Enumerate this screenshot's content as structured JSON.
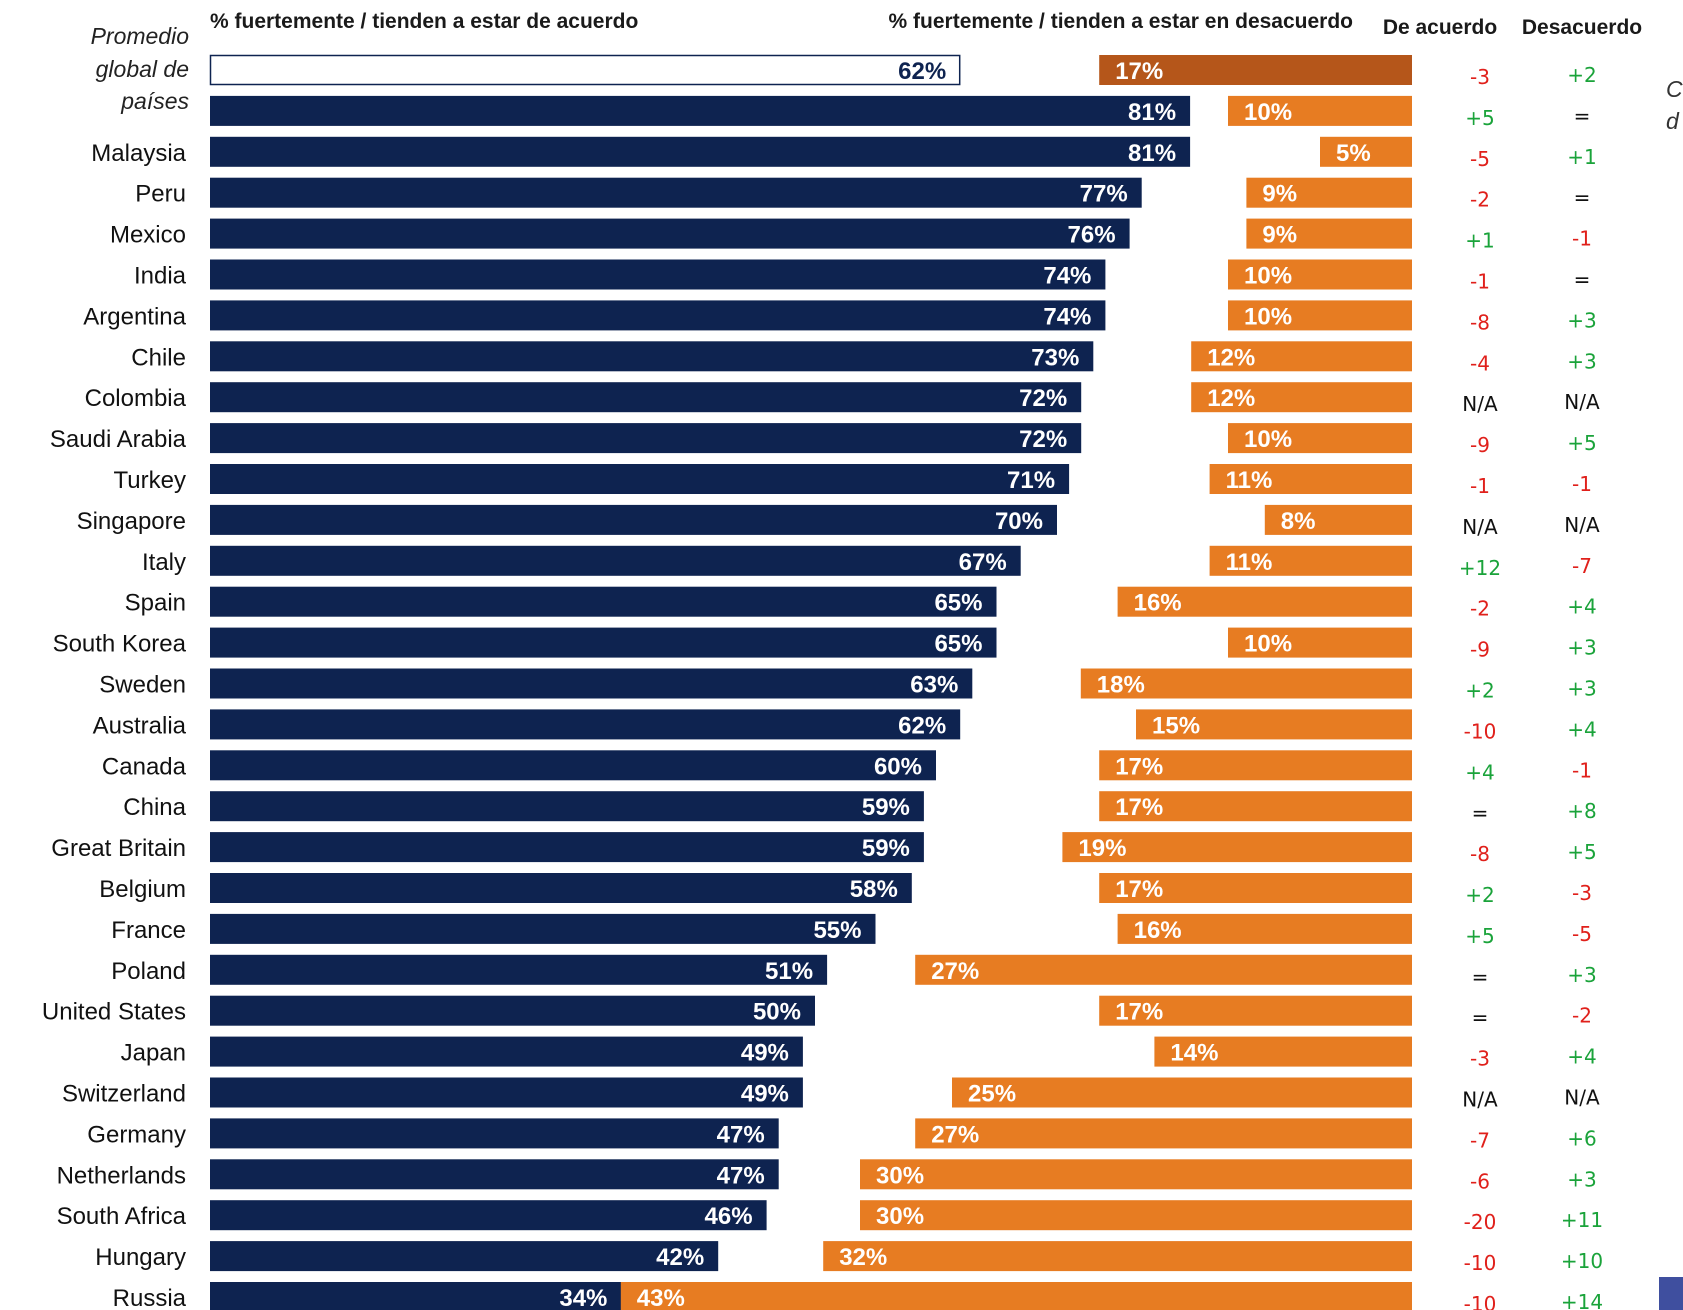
{
  "chart_data": {
    "type": "bar",
    "headers": {
      "agree": "% fuertemente / tienden a estar de acuerdo",
      "disagree": "% fuertemente / tienden a estar en desacuerdo",
      "change_agree": "De acuerdo",
      "change_disagree": "Desacuerdo"
    },
    "average_label": [
      "Promedio",
      "global de",
      "países"
    ],
    "side_note": [
      "C",
      "d"
    ],
    "colors": {
      "agree": "#0e2350",
      "disagree": "#e77c22",
      "average_disagree": "#b5561a",
      "positive_change": "#1aa33a",
      "negative_change": "#e0201b",
      "neutral_change": "#111111",
      "corner_marker": "#3f4f9f"
    },
    "rows": [
      {
        "label": "",
        "agree": 62,
        "disagree": 17,
        "chg_agree": "-3",
        "chg_disagree": "+2",
        "average": true
      },
      {
        "label": "",
        "agree": 81,
        "disagree": 10,
        "chg_agree": "+5",
        "chg_disagree": "="
      },
      {
        "label": "Malaysia",
        "agree": 81,
        "disagree": 5,
        "chg_agree": "-5",
        "chg_disagree": "+1"
      },
      {
        "label": "Peru",
        "agree": 77,
        "disagree": 9,
        "chg_agree": "-2",
        "chg_disagree": "="
      },
      {
        "label": "Mexico",
        "agree": 76,
        "disagree": 9,
        "chg_agree": "+1",
        "chg_disagree": "-1"
      },
      {
        "label": "India",
        "agree": 74,
        "disagree": 10,
        "chg_agree": "-1",
        "chg_disagree": "="
      },
      {
        "label": "Argentina",
        "agree": 74,
        "disagree": 10,
        "chg_agree": "-8",
        "chg_disagree": "+3"
      },
      {
        "label": "Chile",
        "agree": 73,
        "disagree": 12,
        "chg_agree": "-4",
        "chg_disagree": "+3"
      },
      {
        "label": "Colombia",
        "agree": 72,
        "disagree": 12,
        "chg_agree": "N/A",
        "chg_disagree": "N/A"
      },
      {
        "label": "Saudi Arabia",
        "agree": 72,
        "disagree": 10,
        "chg_agree": "-9",
        "chg_disagree": "+5"
      },
      {
        "label": "Turkey",
        "agree": 71,
        "disagree": 11,
        "chg_agree": "-1",
        "chg_disagree": "-1"
      },
      {
        "label": "Singapore",
        "agree": 70,
        "disagree": 8,
        "chg_agree": "N/A",
        "chg_disagree": "N/A"
      },
      {
        "label": "Italy",
        "agree": 67,
        "disagree": 11,
        "chg_agree": "+12",
        "chg_disagree": "-7"
      },
      {
        "label": "Spain",
        "agree": 65,
        "disagree": 16,
        "chg_agree": "-2",
        "chg_disagree": "+4"
      },
      {
        "label": "South Korea",
        "agree": 65,
        "disagree": 10,
        "chg_agree": "-9",
        "chg_disagree": "+3"
      },
      {
        "label": "Sweden",
        "agree": 63,
        "disagree": 18,
        "chg_agree": "+2",
        "chg_disagree": "+3"
      },
      {
        "label": "Australia",
        "agree": 62,
        "disagree": 15,
        "chg_agree": "-10",
        "chg_disagree": "+4"
      },
      {
        "label": "Canada",
        "agree": 60,
        "disagree": 17,
        "chg_agree": "+4",
        "chg_disagree": "-1"
      },
      {
        "label": "China",
        "agree": 59,
        "disagree": 17,
        "chg_agree": "=",
        "chg_disagree": "+8"
      },
      {
        "label": "Great Britain",
        "agree": 59,
        "disagree": 19,
        "chg_agree": "-8",
        "chg_disagree": "+5"
      },
      {
        "label": "Belgium",
        "agree": 58,
        "disagree": 17,
        "chg_agree": "+2",
        "chg_disagree": "-3"
      },
      {
        "label": "France",
        "agree": 55,
        "disagree": 16,
        "chg_agree": "+5",
        "chg_disagree": "-5"
      },
      {
        "label": "Poland",
        "agree": 51,
        "disagree": 27,
        "chg_agree": "=",
        "chg_disagree": "+3"
      },
      {
        "label": "United States",
        "agree": 50,
        "disagree": 17,
        "chg_agree": "=",
        "chg_disagree": "-2"
      },
      {
        "label": "Japan",
        "agree": 49,
        "disagree": 14,
        "chg_agree": "-3",
        "chg_disagree": "+4"
      },
      {
        "label": "Switzerland",
        "agree": 49,
        "disagree": 25,
        "chg_agree": "N/A",
        "chg_disagree": "N/A"
      },
      {
        "label": "Germany",
        "agree": 47,
        "disagree": 27,
        "chg_agree": "-7",
        "chg_disagree": "+6"
      },
      {
        "label": "Netherlands",
        "agree": 47,
        "disagree": 30,
        "chg_agree": "-6",
        "chg_disagree": "+3"
      },
      {
        "label": "South Africa",
        "agree": 46,
        "disagree": 30,
        "chg_agree": "-20",
        "chg_disagree": "+11"
      },
      {
        "label": "Hungary",
        "agree": 42,
        "disagree": 32,
        "chg_agree": "-10",
        "chg_disagree": "+10"
      },
      {
        "label": "Russia",
        "agree": 34,
        "disagree": 43,
        "chg_agree": "-10",
        "chg_disagree": "+14"
      }
    ]
  }
}
